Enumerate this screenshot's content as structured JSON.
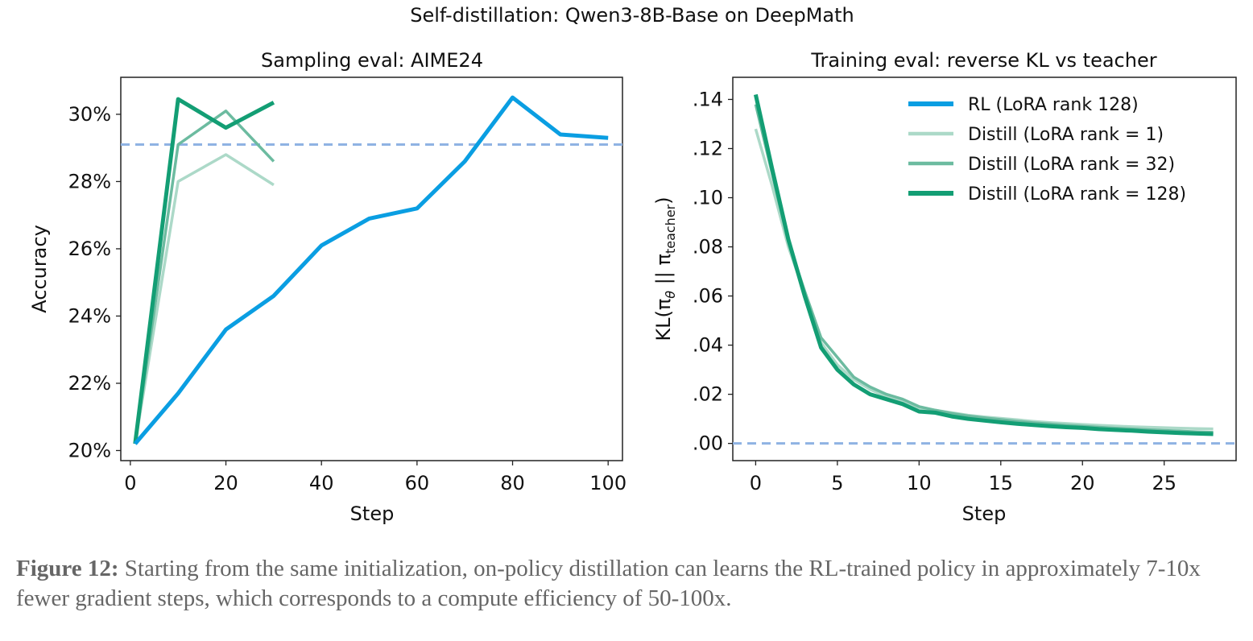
{
  "suptitle": "Self-distillation: Qwen3-8B-Base on DeepMath",
  "caption": {
    "label": "Figure 12:",
    "text": " Starting from the same initialization, on-policy distillation can learns the RL-trained policy in approximately 7-10x fewer gradient steps, which corresponds to a compute efficiency of 50-100x."
  },
  "colors": {
    "rl": "#0a9ee2",
    "distill_1": "#acd9c8",
    "distill_32": "#6cbba0",
    "distill_128": "#139e74",
    "reference": "#8fb3e3"
  },
  "chart_data": [
    {
      "type": "line",
      "title": "Sampling eval: AIME24",
      "xlabel": "Step",
      "ylabel": "Accuracy",
      "xlim": [
        -2,
        103
      ],
      "ylim": [
        19.7,
        31.1
      ],
      "xticks": [
        0,
        20,
        40,
        60,
        80,
        100
      ],
      "xtick_labels": [
        "0",
        "20",
        "40",
        "60",
        "80",
        "100"
      ],
      "yticks": [
        20,
        22,
        24,
        26,
        28,
        30
      ],
      "ytick_labels": [
        "20%",
        "22%",
        "24%",
        "26%",
        "28%",
        "30%"
      ],
      "grid": false,
      "reference_line": {
        "y": 29.1,
        "style": "dashed"
      },
      "series": [
        {
          "key": "distill_1",
          "x": [
            1,
            10,
            20,
            30
          ],
          "y": [
            20.2,
            28.0,
            28.8,
            27.9
          ]
        },
        {
          "key": "distill_32",
          "x": [
            1,
            10,
            20,
            30
          ],
          "y": [
            20.2,
            29.1,
            30.1,
            28.6
          ]
        },
        {
          "key": "distill_128",
          "x": [
            1,
            10,
            20,
            30
          ],
          "y": [
            20.2,
            30.45,
            29.6,
            30.35
          ]
        },
        {
          "key": "rl",
          "x": [
            1,
            10,
            20,
            30,
            40,
            50,
            60,
            70,
            80,
            90,
            100
          ],
          "y": [
            20.2,
            21.7,
            23.6,
            24.6,
            26.1,
            26.9,
            27.2,
            28.6,
            30.5,
            29.4,
            29.3
          ]
        }
      ]
    },
    {
      "type": "line",
      "title": "Training eval: reverse KL vs teacher",
      "xlabel": "Step",
      "ylabel_parts": [
        "KL(π",
        "θ",
        " || π",
        "teacher",
        ")"
      ],
      "xlim": [
        -1.4,
        29.4
      ],
      "ylim": [
        -0.007,
        0.149
      ],
      "xticks": [
        0,
        5,
        10,
        15,
        20,
        25
      ],
      "xtick_labels": [
        "0",
        "5",
        "10",
        "15",
        "20",
        "25"
      ],
      "yticks": [
        0,
        0.02,
        0.04,
        0.06,
        0.08,
        0.1,
        0.12,
        0.14
      ],
      "ytick_labels": [
        ".00",
        ".02",
        ".04",
        ".06",
        ".08",
        ".10",
        ".12",
        ".14"
      ],
      "grid": false,
      "legend": "top-right",
      "reference_line": {
        "y": 0,
        "style": "dashed"
      },
      "series": [
        {
          "key": "rl",
          "name": "RL (LoRA rank 128)",
          "x": [],
          "y": []
        },
        {
          "key": "distill_1",
          "name": "Distill (LoRA rank = 1)",
          "x": [
            0,
            1,
            2,
            3,
            4,
            5,
            6,
            7,
            8,
            9,
            10,
            11,
            12,
            13,
            14,
            15,
            16,
            17,
            18,
            19,
            20,
            21,
            22,
            23,
            24,
            25,
            26,
            27,
            28
          ],
          "y": [
            0.128,
            0.105,
            0.08,
            0.061,
            0.041,
            0.032,
            0.026,
            0.022,
            0.019,
            0.017,
            0.0145,
            0.0135,
            0.0125,
            0.0115,
            0.0108,
            0.0102,
            0.0096,
            0.009,
            0.0085,
            0.0081,
            0.0077,
            0.0074,
            0.0071,
            0.0068,
            0.0066,
            0.0064,
            0.0062,
            0.006,
            0.0059
          ]
        },
        {
          "key": "distill_32",
          "name": "Distill (LoRA rank = 32)",
          "x": [
            0,
            1,
            2,
            3,
            4,
            5,
            6,
            7,
            8,
            9,
            10,
            11,
            12,
            13,
            14,
            15,
            16,
            17,
            18,
            19,
            20,
            21,
            22,
            23,
            24,
            25,
            26,
            27,
            28
          ],
          "y": [
            0.138,
            0.11,
            0.082,
            0.062,
            0.043,
            0.035,
            0.027,
            0.023,
            0.02,
            0.018,
            0.015,
            0.0135,
            0.0122,
            0.0112,
            0.0104,
            0.0097,
            0.009,
            0.0084,
            0.0079,
            0.0074,
            0.007,
            0.0066,
            0.0062,
            0.0059,
            0.0056,
            0.0053,
            0.005,
            0.0047,
            0.0045
          ]
        },
        {
          "key": "distill_128",
          "name": "Distill (LoRA rank = 128)",
          "x": [
            0,
            1,
            2,
            3,
            4,
            5,
            6,
            7,
            8,
            9,
            10,
            11,
            12,
            13,
            14,
            15,
            16,
            17,
            18,
            19,
            20,
            21,
            22,
            23,
            24,
            25,
            26,
            27,
            28
          ],
          "y": [
            0.142,
            0.112,
            0.083,
            0.06,
            0.039,
            0.03,
            0.024,
            0.02,
            0.018,
            0.016,
            0.013,
            0.0125,
            0.011,
            0.01,
            0.0093,
            0.0086,
            0.008,
            0.0075,
            0.007,
            0.0066,
            0.0063,
            0.0058,
            0.0055,
            0.0052,
            0.0048,
            0.0045,
            0.0042,
            0.004,
            0.0038
          ]
        }
      ]
    }
  ]
}
